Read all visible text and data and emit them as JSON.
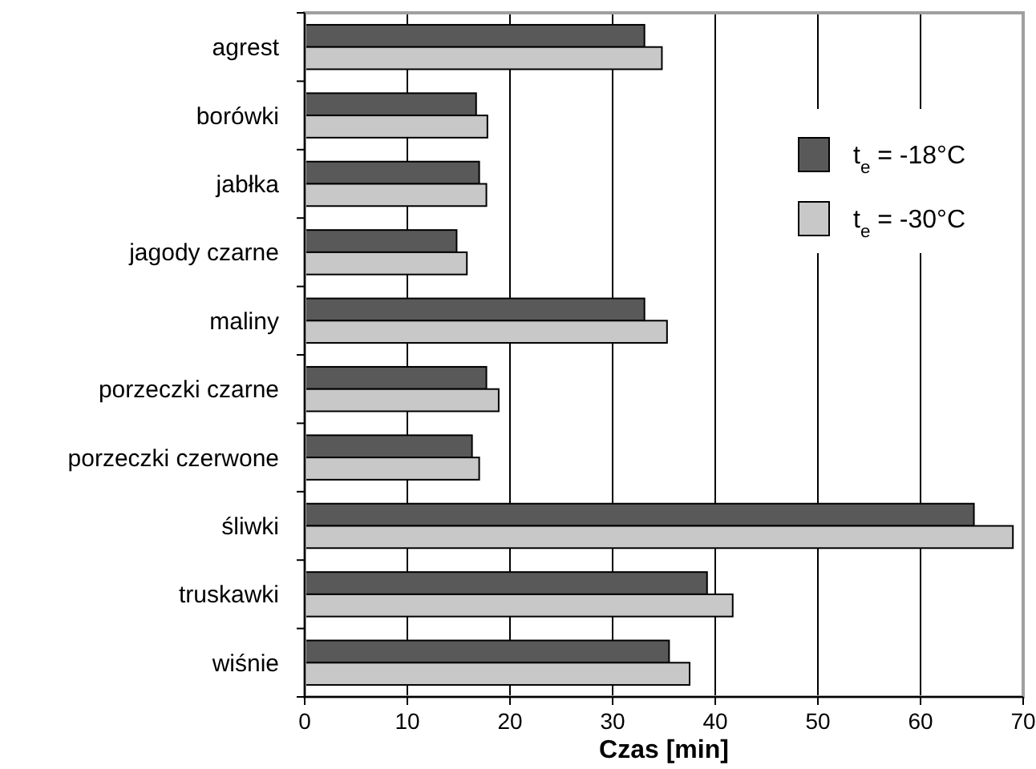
{
  "chart_data": {
    "type": "bar",
    "orientation": "horizontal",
    "xlabel": "Czas [min]",
    "categories": [
      "agrest",
      "borówki",
      "jabłka",
      "jagody czarne",
      "maliny",
      "porzeczki czarne",
      "porzeczki czerwone",
      "śliwki",
      "truskawki",
      "wiśnie"
    ],
    "series": [
      {
        "name": "t$_{e}$ = -18°C",
        "color": "#595959",
        "values": [
          33.1,
          16.7,
          17.0,
          14.8,
          33.1,
          17.7,
          16.3,
          65.2,
          39.2,
          35.5
        ]
      },
      {
        "name": "t$_{e}$ = -30°C",
        "color": "#c8c8c8",
        "values": [
          34.8,
          17.8,
          17.7,
          15.8,
          35.3,
          18.9,
          17.0,
          69.0,
          41.7,
          37.5
        ]
      }
    ],
    "xlim": [
      0,
      70
    ],
    "xticks": [
      0,
      10,
      20,
      30,
      40,
      50,
      60,
      70
    ],
    "grid": "x",
    "legend": "top right"
  }
}
